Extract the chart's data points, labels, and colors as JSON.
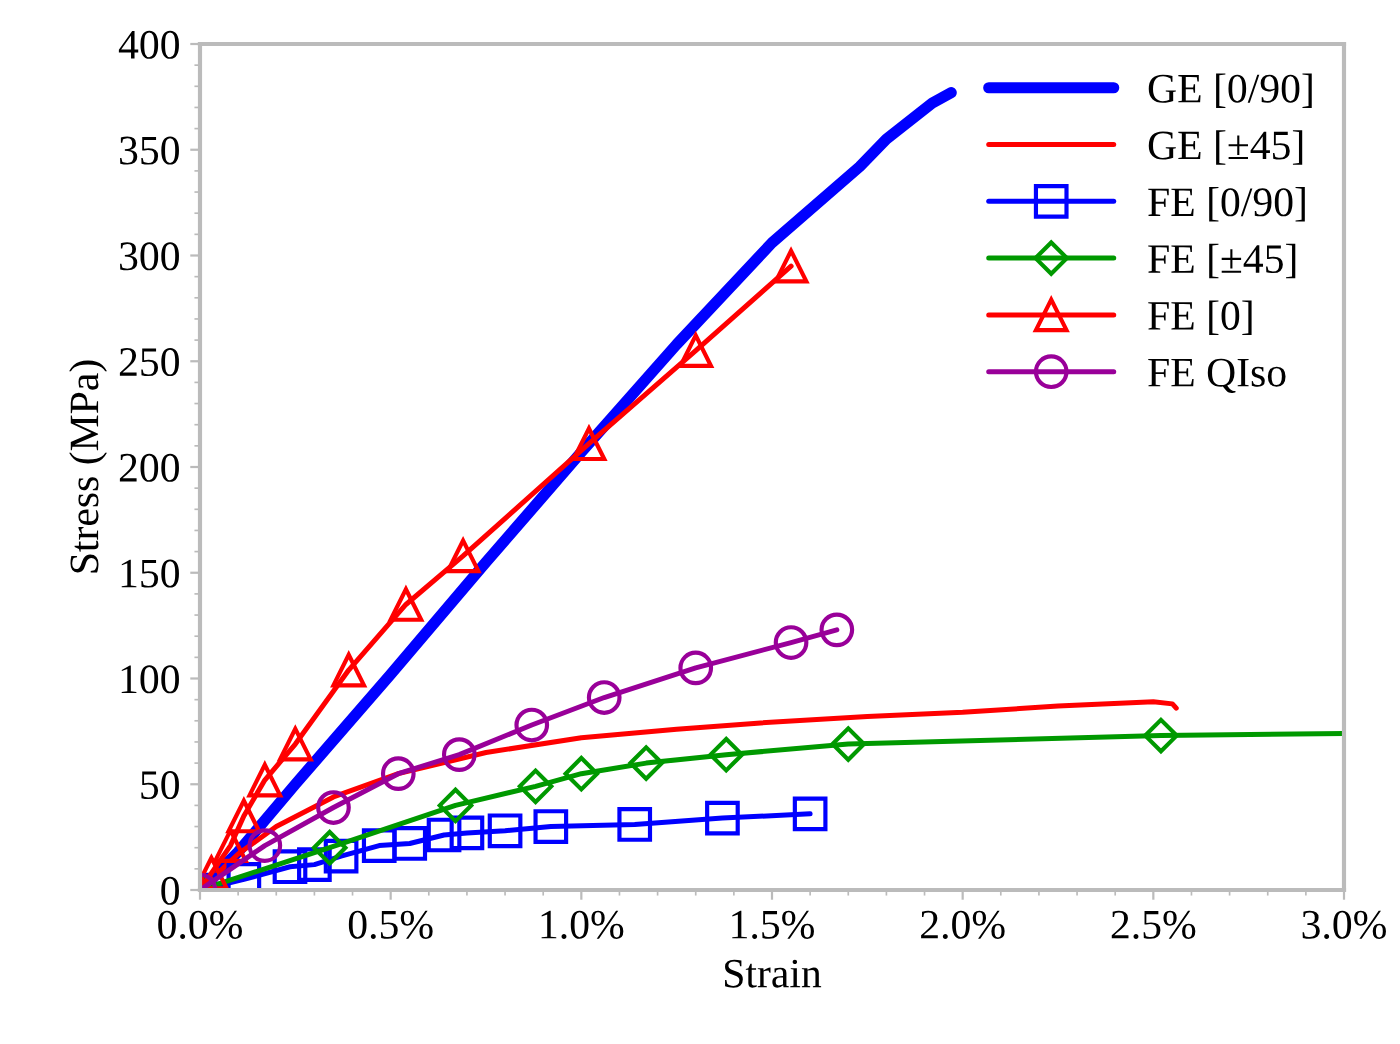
{
  "chart_data": {
    "type": "line",
    "xlabel": "Strain",
    "ylabel": "Stress (MPa)",
    "xlim": [
      0,
      3.0
    ],
    "ylim": [
      0,
      400
    ],
    "xticks": [
      {
        "value": 0,
        "label": "0.0%"
      },
      {
        "value": 0.5,
        "label": "0.5%"
      },
      {
        "value": 1.0,
        "label": "1.0%"
      },
      {
        "value": 1.5,
        "label": "1.5%"
      },
      {
        "value": 2.0,
        "label": "2.0%"
      },
      {
        "value": 2.5,
        "label": "2.5%"
      },
      {
        "value": 3.0,
        "label": "3.0%"
      }
    ],
    "yticks": [
      0,
      50,
      100,
      150,
      200,
      250,
      300,
      350,
      400
    ],
    "grid": false,
    "legend": "top right",
    "series": [
      {
        "name": "GE [0/90]",
        "color": "#0000ff",
        "marker": "none",
        "x": [
          0,
          0.1,
          0.25,
          0.5,
          0.75,
          1.0,
          1.25,
          1.5,
          1.73,
          1.8,
          1.92,
          1.97
        ],
        "values": [
          0,
          18,
          50,
          102,
          155,
          207,
          258,
          306,
          342,
          355,
          372,
          377
        ]
      },
      {
        "name": "GE [±45]",
        "color": "#ff0000",
        "marker": "none",
        "x": [
          0,
          0.1,
          0.2,
          0.35,
          0.52,
          0.75,
          1.0,
          1.25,
          1.47,
          1.75,
          2.0,
          2.25,
          2.5,
          2.55,
          2.56
        ],
        "values": [
          0,
          17,
          30,
          44,
          55,
          65,
          72,
          76,
          79,
          82,
          84,
          87,
          89,
          88,
          86
        ]
      },
      {
        "name": "FE [0/90]",
        "color": "#0000ff",
        "marker": "square",
        "x": [
          0,
          0.115,
          0.236,
          0.3,
          0.37,
          0.47,
          0.55,
          0.64,
          0.7,
          0.8,
          0.92,
          1.14,
          1.37,
          1.6
        ],
        "values": [
          0,
          5,
          11,
          12,
          16,
          21,
          22,
          26,
          27,
          28,
          30,
          31,
          34,
          36
        ]
      },
      {
        "name": "FE [±45]",
        "color": "#009900",
        "marker": "diamond",
        "x": [
          0,
          0.34,
          0.67,
          0.88,
          1.0,
          1.17,
          1.38,
          1.7,
          2.52
        ],
        "values": [
          0,
          20,
          40,
          49,
          55,
          60,
          64,
          69,
          73
        ]
      },
      {
        "color": "#009900",
        "marker": "none",
        "x": [
          2.52,
          3.0
        ],
        "values": [
          73,
          74
        ]
      },
      {
        "name": "FE [0]",
        "color": "#ff0000",
        "marker": "triangle",
        "x": [
          0,
          0.03,
          0.08,
          0.115,
          0.17,
          0.25,
          0.39,
          0.54,
          0.69,
          1.02,
          1.3,
          1.55
        ],
        "values": [
          0,
          8,
          21,
          35,
          52,
          69,
          104,
          135,
          158,
          211,
          255,
          295
        ]
      },
      {
        "name": "FE QIso",
        "color": "#990099",
        "marker": "circle",
        "x": [
          0,
          0.17,
          0.35,
          0.52,
          0.68,
          0.87,
          1.06,
          1.3,
          1.55,
          1.67
        ],
        "values": [
          0,
          21,
          39,
          55,
          64,
          78,
          91,
          105,
          117,
          123
        ]
      }
    ]
  }
}
